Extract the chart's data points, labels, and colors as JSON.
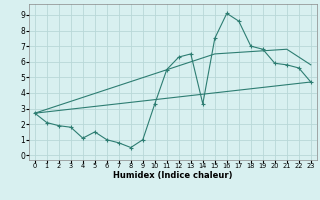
{
  "xlabel": "Humidex (Indice chaleur)",
  "xlim": [
    -0.5,
    23.5
  ],
  "ylim": [
    -0.3,
    9.7
  ],
  "xticks": [
    0,
    1,
    2,
    3,
    4,
    5,
    6,
    7,
    8,
    9,
    10,
    11,
    12,
    13,
    14,
    15,
    16,
    17,
    18,
    19,
    20,
    21,
    22,
    23
  ],
  "yticks": [
    0,
    1,
    2,
    3,
    4,
    5,
    6,
    7,
    8,
    9
  ],
  "line_color": "#2d7d72",
  "bg_color": "#d8f0f0",
  "grid_color": "#b8d8d8",
  "line1_x": [
    0,
    1,
    2,
    3,
    4,
    5,
    6,
    7,
    8,
    9,
    10,
    11,
    12,
    13,
    14,
    15,
    16,
    17,
    18,
    19,
    20,
    21,
    22,
    23
  ],
  "line1_y": [
    2.7,
    2.1,
    1.9,
    1.8,
    1.1,
    1.5,
    1.0,
    0.8,
    0.5,
    1.0,
    3.3,
    5.5,
    6.3,
    6.5,
    3.3,
    7.5,
    9.1,
    8.6,
    7.0,
    6.8,
    5.9,
    5.8,
    5.6,
    4.7
  ],
  "line2_x": [
    0,
    15,
    21,
    23
  ],
  "line2_y": [
    2.7,
    6.5,
    6.8,
    5.8
  ],
  "line3_x": [
    0,
    23
  ],
  "line3_y": [
    2.7,
    4.7
  ],
  "xlabel_fontsize": 6.0,
  "tick_fontsize_x": 4.8,
  "tick_fontsize_y": 5.5
}
